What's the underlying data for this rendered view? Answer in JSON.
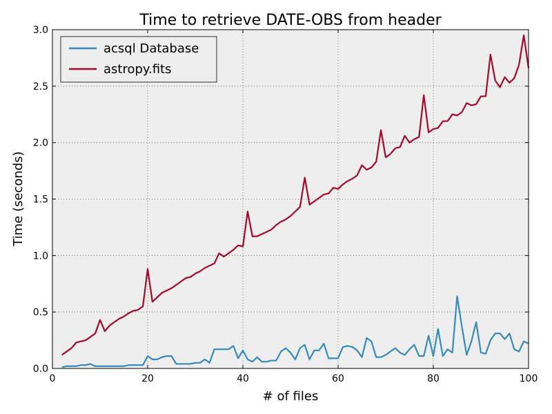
{
  "chart_data": {
    "type": "line",
    "title": "Time to retrieve DATE-OBS from header",
    "xlabel": "# of files",
    "ylabel": "Time (seconds)",
    "xlim": [
      0,
      100
    ],
    "ylim": [
      0.0,
      3.0
    ],
    "xticks": [
      0,
      20,
      40,
      60,
      80,
      100
    ],
    "yticks": [
      0.0,
      0.5,
      1.0,
      1.5,
      2.0,
      2.5,
      3.0
    ],
    "xtick_labels": [
      "0",
      "20",
      "40",
      "60",
      "80",
      "100"
    ],
    "ytick_labels": [
      "0.0",
      "0.5",
      "1.0",
      "1.5",
      "2.0",
      "2.5",
      "3.0"
    ],
    "grid": true,
    "legend_position": "top-left",
    "background_color": "#eeeeee",
    "x": [
      2,
      3,
      4,
      5,
      6,
      7,
      8,
      9,
      10,
      11,
      12,
      13,
      14,
      15,
      16,
      17,
      18,
      19,
      20,
      21,
      22,
      23,
      24,
      25,
      26,
      27,
      28,
      29,
      30,
      31,
      32,
      33,
      34,
      35,
      36,
      37,
      38,
      39,
      40,
      41,
      42,
      43,
      44,
      45,
      46,
      47,
      48,
      49,
      50,
      51,
      52,
      53,
      54,
      55,
      56,
      57,
      58,
      59,
      60,
      61,
      62,
      63,
      64,
      65,
      66,
      67,
      68,
      69,
      70,
      71,
      72,
      73,
      74,
      75,
      76,
      77,
      78,
      79,
      80,
      81,
      82,
      83,
      84,
      85,
      86,
      87,
      88,
      89,
      90,
      91,
      92,
      93,
      94,
      95,
      96,
      97,
      98,
      99,
      100
    ],
    "series": [
      {
        "name": "acsql Database",
        "color": "#348abd",
        "values": [
          0.01,
          0.02,
          0.02,
          0.02,
          0.03,
          0.03,
          0.04,
          0.02,
          0.02,
          0.02,
          0.02,
          0.02,
          0.02,
          0.02,
          0.03,
          0.03,
          0.03,
          0.03,
          0.11,
          0.08,
          0.08,
          0.1,
          0.11,
          0.11,
          0.04,
          0.04,
          0.04,
          0.04,
          0.05,
          0.05,
          0.08,
          0.05,
          0.17,
          0.17,
          0.17,
          0.17,
          0.2,
          0.09,
          0.16,
          0.08,
          0.06,
          0.1,
          0.06,
          0.06,
          0.07,
          0.07,
          0.15,
          0.18,
          0.14,
          0.08,
          0.18,
          0.21,
          0.08,
          0.16,
          0.16,
          0.22,
          0.09,
          0.09,
          0.09,
          0.19,
          0.2,
          0.19,
          0.16,
          0.1,
          0.27,
          0.24,
          0.1,
          0.1,
          0.12,
          0.15,
          0.18,
          0.14,
          0.12,
          0.17,
          0.21,
          0.11,
          0.11,
          0.29,
          0.11,
          0.35,
          0.11,
          0.17,
          0.14,
          0.64,
          0.37,
          0.12,
          0.24,
          0.41,
          0.14,
          0.13,
          0.25,
          0.31,
          0.31,
          0.26,
          0.31,
          0.17,
          0.15,
          0.24,
          0.22
        ]
      },
      {
        "name": "astropy.fits",
        "color": "#a60628",
        "values": [
          0.12,
          0.15,
          0.18,
          0.23,
          0.24,
          0.25,
          0.28,
          0.31,
          0.43,
          0.33,
          0.38,
          0.41,
          0.44,
          0.46,
          0.49,
          0.51,
          0.52,
          0.55,
          0.88,
          0.59,
          0.63,
          0.67,
          0.69,
          0.71,
          0.74,
          0.77,
          0.8,
          0.81,
          0.84,
          0.86,
          0.89,
          0.91,
          0.93,
          1.02,
          0.99,
          1.02,
          1.05,
          1.09,
          1.08,
          1.39,
          1.17,
          1.17,
          1.19,
          1.21,
          1.23,
          1.27,
          1.3,
          1.32,
          1.35,
          1.39,
          1.43,
          1.69,
          1.45,
          1.48,
          1.51,
          1.54,
          1.55,
          1.6,
          1.59,
          1.63,
          1.66,
          1.68,
          1.71,
          1.8,
          1.76,
          1.78,
          1.83,
          2.11,
          1.87,
          1.9,
          1.95,
          1.96,
          2.06,
          2.0,
          2.03,
          2.05,
          2.42,
          2.09,
          2.12,
          2.13,
          2.19,
          2.19,
          2.25,
          2.24,
          2.27,
          2.35,
          2.33,
          2.34,
          2.41,
          2.41,
          2.78,
          2.55,
          2.49,
          2.58,
          2.53,
          2.57,
          2.69,
          2.95,
          2.66
        ]
      }
    ]
  }
}
